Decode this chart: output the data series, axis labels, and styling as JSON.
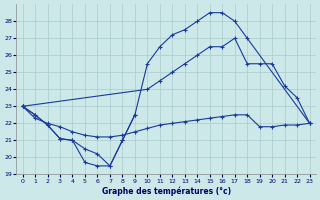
{
  "title": "Graphe des températures (°c)",
  "bg_color": "#cce8e8",
  "grid_color": "#aacccc",
  "line_color": "#1a3a9c",
  "ylim": [
    19,
    29
  ],
  "yticks": [
    19,
    20,
    21,
    22,
    23,
    24,
    25,
    26,
    27,
    28
  ],
  "xticks": [
    0,
    1,
    2,
    3,
    4,
    5,
    6,
    7,
    8,
    9,
    10,
    11,
    12,
    13,
    14,
    15,
    16,
    17,
    18,
    19,
    20,
    21,
    22,
    23
  ],
  "line1_x": [
    0,
    1,
    2,
    3,
    4,
    5,
    6,
    7,
    8,
    9
  ],
  "line1_y": [
    23.0,
    22.5,
    21.9,
    21.1,
    21.0,
    19.7,
    19.5,
    19.5,
    21.0,
    22.5
  ],
  "line2_x": [
    0,
    1,
    2,
    3,
    4,
    5,
    6,
    7,
    8,
    9,
    10,
    11,
    12,
    13,
    14,
    15,
    16,
    17,
    18,
    23
  ],
  "line2_y": [
    23.0,
    22.5,
    21.9,
    21.1,
    21.0,
    20.5,
    20.2,
    19.5,
    21.0,
    22.5,
    25.5,
    26.5,
    27.2,
    27.5,
    28.0,
    28.5,
    28.5,
    28.0,
    27.0,
    22.0
  ],
  "line3_x": [
    0,
    10,
    11,
    12,
    13,
    14,
    15,
    16,
    17,
    18,
    19,
    20,
    21,
    22,
    23
  ],
  "line3_y": [
    23.0,
    24.0,
    24.5,
    25.0,
    25.5,
    26.0,
    26.5,
    26.5,
    27.0,
    25.5,
    25.5,
    25.5,
    24.2,
    23.5,
    22.0
  ],
  "line4_x": [
    0,
    1,
    2,
    3,
    4,
    5,
    6,
    7,
    8,
    9,
    10,
    11,
    12,
    13,
    14,
    15,
    16,
    17,
    18,
    19,
    20,
    21,
    22,
    23
  ],
  "line4_y": [
    23.0,
    22.3,
    22.0,
    21.8,
    21.5,
    21.3,
    21.2,
    21.2,
    21.3,
    21.5,
    21.7,
    21.9,
    22.0,
    22.1,
    22.2,
    22.3,
    22.4,
    22.5,
    22.5,
    21.8,
    21.8,
    21.9,
    21.9,
    22.0
  ]
}
